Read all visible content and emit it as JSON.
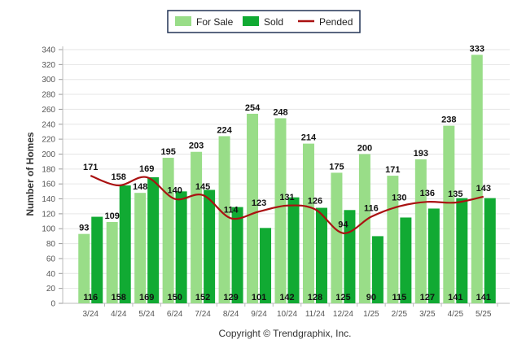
{
  "chart_data": {
    "type": "bar",
    "categories": [
      "3/24",
      "4/24",
      "5/24",
      "6/24",
      "7/24",
      "8/24",
      "9/24",
      "10/24",
      "11/24",
      "12/24",
      "1/25",
      "2/25",
      "3/25",
      "4/25",
      "5/25"
    ],
    "series": [
      {
        "name": "For Sale",
        "kind": "bar",
        "color": "#99dd88",
        "values": [
          93,
          109,
          148,
          195,
          203,
          224,
          254,
          248,
          214,
          175,
          200,
          171,
          193,
          238,
          333
        ]
      },
      {
        "name": "Sold",
        "kind": "bar",
        "color": "#11aa33",
        "values": [
          116,
          158,
          169,
          150,
          152,
          129,
          101,
          142,
          128,
          125,
          90,
          115,
          127,
          141,
          141
        ]
      },
      {
        "name": "Pended",
        "kind": "line",
        "color": "#aa1111",
        "values": [
          171,
          158,
          169,
          140,
          145,
          114,
          123,
          131,
          126,
          94,
          116,
          130,
          136,
          135,
          143
        ]
      }
    ],
    "ylabel": "Number of Homes",
    "xlabel": "",
    "ylim": [
      0,
      340
    ],
    "yticks": [
      0,
      20,
      40,
      60,
      80,
      100,
      120,
      140,
      160,
      180,
      200,
      220,
      240,
      260,
      280,
      300,
      320,
      340
    ],
    "grid": true,
    "legend_position": "top-center",
    "credit": "Copyright © Trendgraphix, Inc."
  }
}
